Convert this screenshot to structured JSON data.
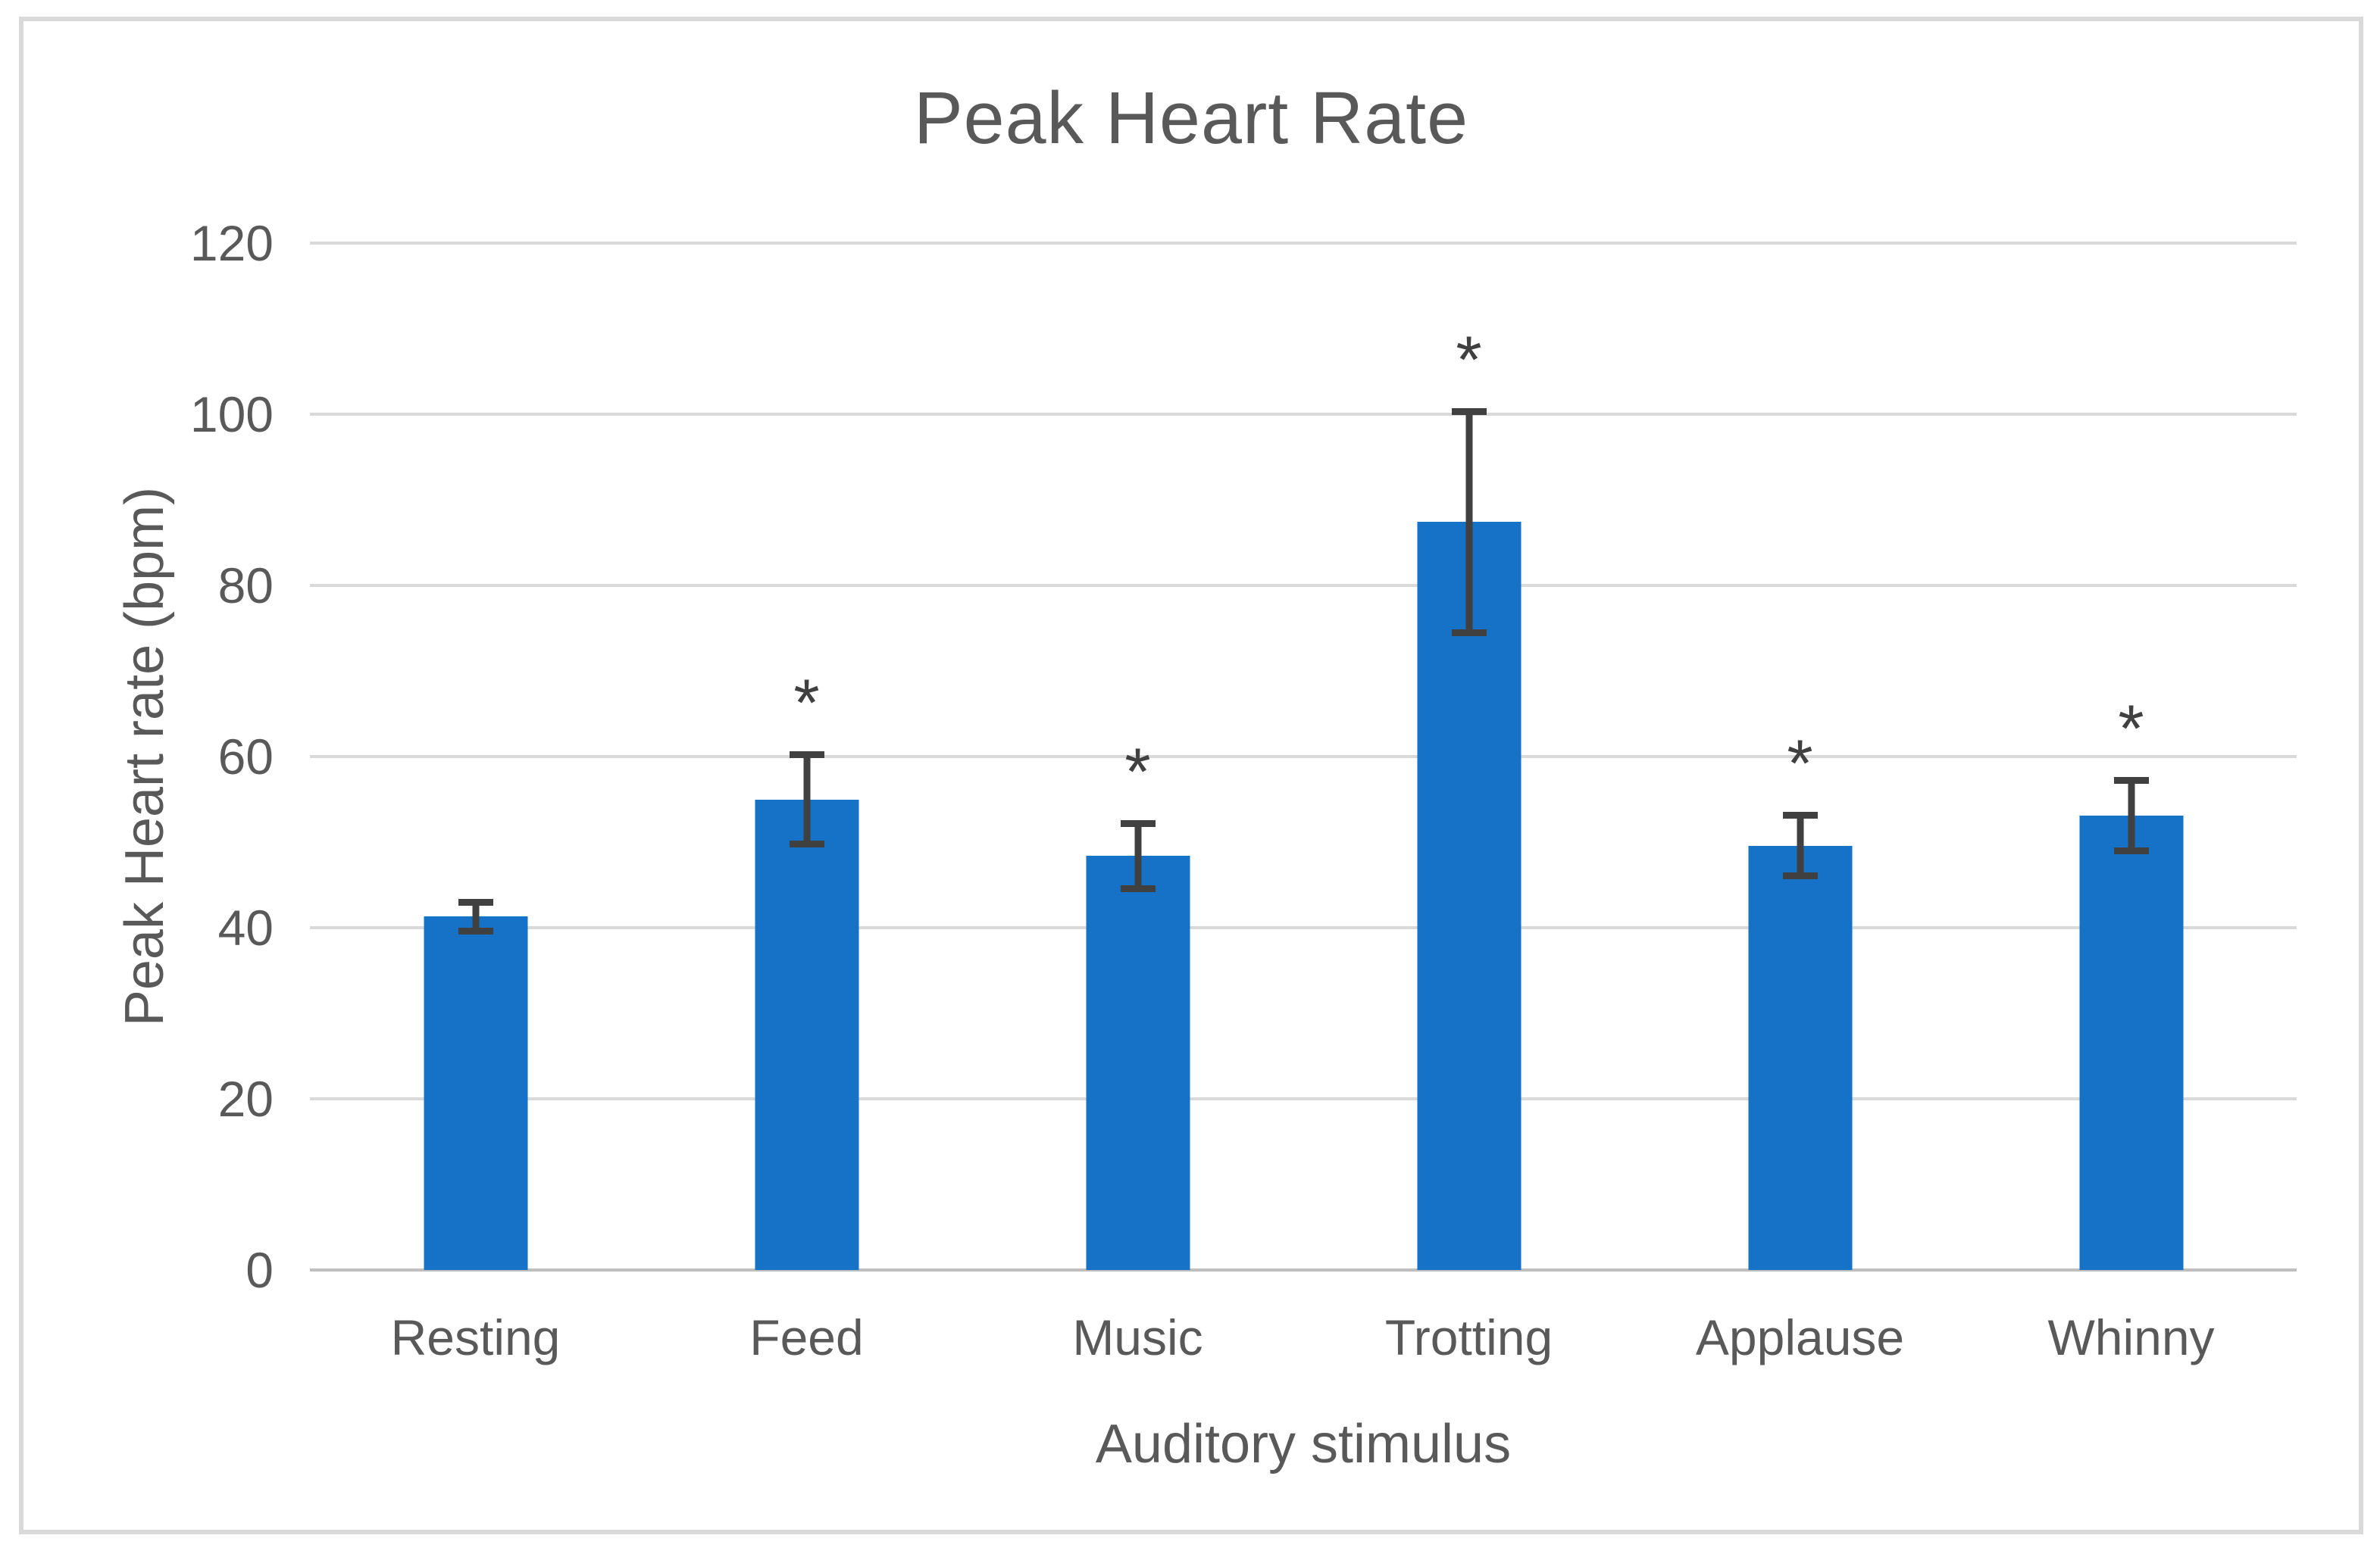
{
  "chart_data": {
    "type": "bar",
    "title": "Peak Heart Rate",
    "xlabel": "Auditory stimulus",
    "ylabel": "Peak Heart rate (bpm)",
    "ylim": [
      0,
      120
    ],
    "y_tick_step": 20,
    "y_ticks": [
      120,
      100,
      80,
      60,
      40,
      20,
      0
    ],
    "grid": true,
    "legend": "none",
    "categories": [
      "Resting",
      "Feed",
      "Music",
      "Trotting",
      "Applause",
      "Whinny"
    ],
    "series": [
      {
        "name": "Peak Heart Rate",
        "values": [
          41.3,
          55.0,
          48.4,
          87.4,
          49.6,
          53.1
        ],
        "error_bars": [
          2.1,
          5.6,
          4.2,
          13.3,
          3.9,
          4.5
        ],
        "significance_markers": [
          "",
          "*",
          "*",
          "*",
          "*",
          "*"
        ]
      }
    ],
    "colors": {
      "bar": "#1572C7",
      "gridline": "#D9D9D9",
      "baseline": "#BFBFBF",
      "error_bar": "#404040",
      "text": "#595959",
      "frame_border": "#D9D9D9"
    }
  }
}
